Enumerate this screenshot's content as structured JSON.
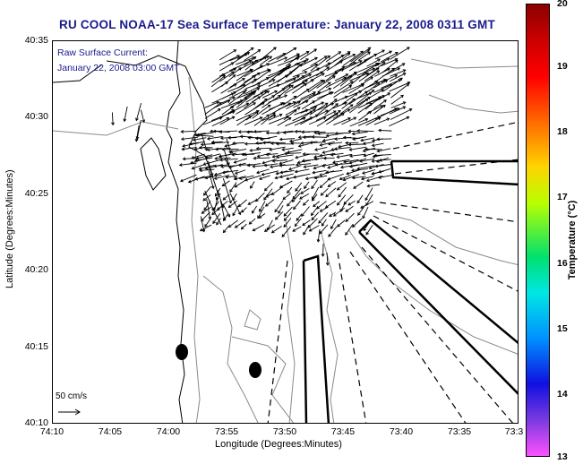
{
  "title": "RU COOL  NOAA-17  Sea Surface Temperature:  January 22, 2008 0311 GMT",
  "notes": {
    "current_label": "Raw Surface Current:",
    "current_time": "January 22, 2008 03:00 GMT"
  },
  "axes": {
    "xlabel": "Longitude (Degrees:Minutes)",
    "ylabel": "Latitude (Degrees:Minutes)",
    "x_ticks": [
      "74:10",
      "74:05",
      "74:00",
      "73:55",
      "73:50",
      "73:45",
      "73:40",
      "73:35",
      "73:3"
    ],
    "y_ticks": [
      "40:35",
      "40:30",
      "40:25",
      "40:20",
      "40:15",
      "40:10"
    ]
  },
  "scale_label": "50 cm/s",
  "colorbar": {
    "label": "Temperature (°C)",
    "ticks": [
      "20",
      "19",
      "18",
      "17",
      "16",
      "15",
      "14",
      "13"
    ]
  },
  "colors": {
    "title": "#1a1a8c",
    "arrows": "#000000",
    "contours": "#8a8a8a"
  }
}
